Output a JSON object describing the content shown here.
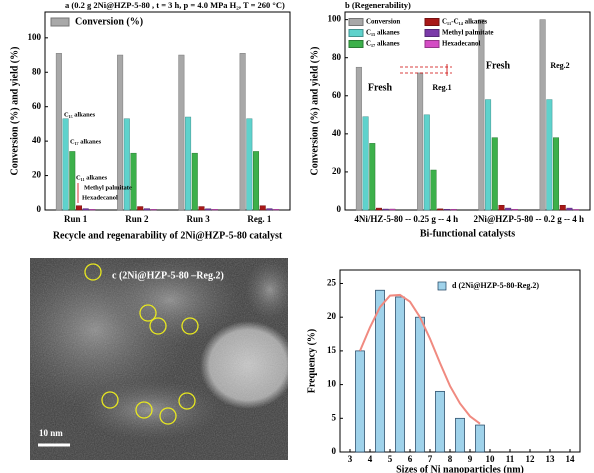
{
  "chart_data": [
    {
      "type": "bar",
      "title": "a (0.2 g 2Ni@HZP-5-80 , t = 3 h, p = 4.0 MPa H₂, T = 260 °C)",
      "x_label": "Recycle and regenarability of 2Ni@HZP-5-80 catalyst",
      "y_label": "Conversion (%) and yield (%)",
      "categories": [
        "Run 1",
        "Run 2",
        "Run 3",
        "Reg. 1"
      ],
      "series": [
        {
          "name": "Conversion (%)",
          "color": "#a8a8a8",
          "values": [
            91,
            90,
            90,
            91
          ]
        },
        {
          "color": "#5ed2cc",
          "values": [
            53,
            53,
            54,
            53
          ]
        },
        {
          "color": "#3cb04a",
          "values": [
            34,
            33,
            33,
            34
          ]
        },
        {
          "color": "#a81818",
          "values": [
            2.5,
            2,
            2,
            2.5
          ]
        },
        {
          "color": "#7a3aa8",
          "values": [
            0.8,
            0.8,
            0.7,
            0.8
          ]
        },
        {
          "color": "#d44cc4",
          "values": [
            0.4,
            0.4,
            0.4,
            0.4
          ]
        }
      ],
      "annotations": [
        "C₁₅ alkanes",
        "C₁₇  alkanes",
        "C₁₁ alkanes",
        "Methyl palmitate",
        "Hexadecanol"
      ],
      "ylim": [
        0,
        115
      ],
      "yticks": [
        0,
        20,
        40,
        60,
        80,
        100
      ]
    },
    {
      "type": "bar",
      "title": "b (Regenerability)",
      "x_label": "Bi-functional catalysts",
      "y_label": "Conversion (%) and yield (%)",
      "categories": [
        "Fresh",
        "Reg.1",
        "Fresh",
        "Reg.2"
      ],
      "group_labels": [
        "4Ni/HZ-5-80 -- 0.25 g -- 4 h",
        "2Ni@HZP-5-80 -- 0.2 g -- 4 h"
      ],
      "series": [
        {
          "name": "Conversion",
          "color": "#a8a8a8",
          "values": [
            75,
            72,
            100,
            100
          ]
        },
        {
          "name": "C₁₅ alkanes",
          "color": "#5ed2cc",
          "values": [
            49,
            50,
            58,
            58
          ]
        },
        {
          "name": "C₁₇ alkanes",
          "color": "#3cb04a",
          "values": [
            35,
            21,
            38,
            38
          ]
        },
        {
          "name": "C₁₁-C₁₄ alkanes",
          "color": "#a81818",
          "values": [
            1,
            0.6,
            2.5,
            2.5
          ]
        },
        {
          "name": "Methyl palmitate",
          "color": "#7a3aa8",
          "values": [
            0.5,
            0.4,
            1,
            1
          ]
        },
        {
          "name": "Hexadecanol",
          "color": "#d44cc4",
          "values": [
            0.5,
            0.4,
            0.4,
            0.3
          ]
        }
      ],
      "ylim": [
        0,
        104
      ],
      "yticks": [
        0,
        20,
        40,
        60,
        80,
        100
      ]
    },
    {
      "type": "histogram",
      "legend": "d (2Ni@HZP-5-80-Reg.2)",
      "x_label": "Sizes of Ni nanoparticles (nm)",
      "y_label": "Frequency (%)",
      "x": [
        3.5,
        4.5,
        5.5,
        6.5,
        7.5,
        8.5,
        9.5
      ],
      "values": [
        15,
        24,
        23,
        20,
        9,
        5,
        4
      ],
      "color": "#9fd2ea",
      "fit": {
        "color": "#f08a80",
        "x": [
          3.5,
          4,
          4.5,
          5,
          5.5,
          6,
          6.5,
          7,
          7.5,
          8,
          8.5,
          9,
          9.5
        ],
        "values": [
          15,
          18.5,
          21.5,
          23.2,
          23.3,
          22.3,
          20,
          16.8,
          13.2,
          9.8,
          7.2,
          5.3,
          4.2
        ]
      },
      "xlim": [
        2.5,
        14.5
      ],
      "xticks": [
        3,
        4,
        5,
        6,
        7,
        8,
        9,
        10,
        11,
        12,
        13,
        14
      ],
      "ylim": [
        0,
        27
      ],
      "yticks": [
        0,
        5,
        10,
        15,
        20,
        25
      ]
    }
  ],
  "image": {
    "label": "c (2Ni@HZP-5-80 –Reg.2)",
    "scale_bar": "10 nm"
  }
}
